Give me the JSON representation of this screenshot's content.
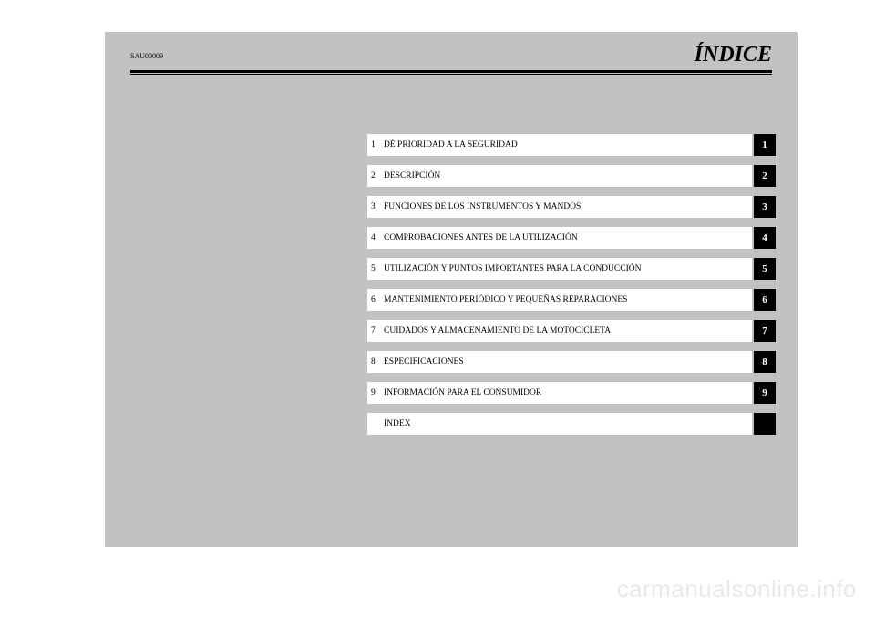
{
  "header": {
    "code": "SAU00009",
    "title": "ÍNDICE"
  },
  "toc": [
    {
      "num": "1",
      "label": "DÉ PRIORIDAD A LA SEGURIDAD",
      "tab": "1"
    },
    {
      "num": "2",
      "label": "DESCRIPCIÓN",
      "tab": "2"
    },
    {
      "num": "3",
      "label": "FUNCIONES DE LOS INSTRUMENTOS Y MANDOS",
      "tab": "3"
    },
    {
      "num": "4",
      "label": "COMPROBACIONES ANTES DE LA UTILIZACIÓN",
      "tab": "4"
    },
    {
      "num": "5",
      "label": "UTILIZACIÓN Y PUNTOS IMPORTANTES PARA LA CONDUCCIÓN",
      "tab": "5"
    },
    {
      "num": "6",
      "label": "MANTENIMIENTO PERIÓDICO Y PEQUEÑAS REPARACIONES",
      "tab": "6"
    },
    {
      "num": "7",
      "label": "CUIDADOS Y ALMACENAMIENTO DE LA MOTOCICLETA",
      "tab": "7"
    },
    {
      "num": "8",
      "label": "ESPECIFICACIONES",
      "tab": "8"
    },
    {
      "num": "9",
      "label": "INFORMACIÓN PARA EL CONSUMIDOR",
      "tab": "9"
    },
    {
      "num": "",
      "label": "INDEX",
      "tab": ""
    }
  ],
  "watermark": "carmanualsonline.info",
  "colors": {
    "page_bg": "#c0c2c4",
    "row_bg": "#ffffff",
    "tab_bg": "#000000",
    "tab_fg": "#ffffff",
    "rule": "#000000"
  }
}
